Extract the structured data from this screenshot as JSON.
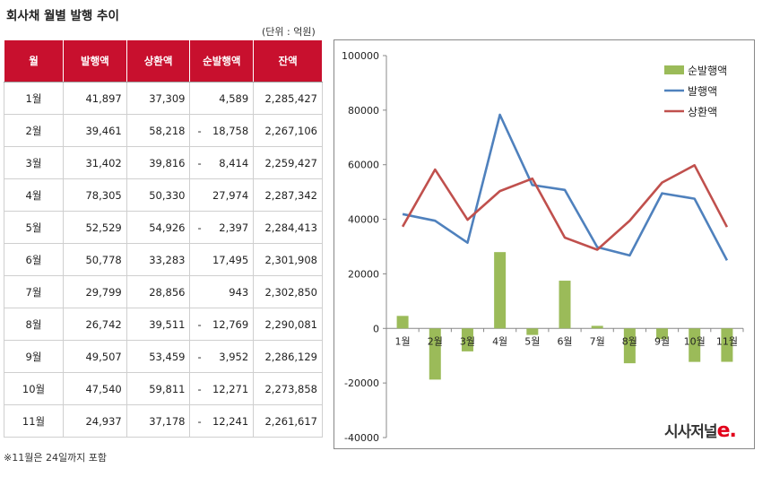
{
  "title": "회사채 월별 발행 추이",
  "unit": "(단위 : 억원)",
  "footnote": "※11월은 24일까지 포함",
  "logo": {
    "main": "시사저널",
    "suffix": "e."
  },
  "colors": {
    "header": "#c8102e",
    "bar": "#9bbb59",
    "issuance": "#4f81bd",
    "redemption": "#c0504d"
  },
  "table": {
    "headers": [
      "월",
      "발행액",
      "상환액",
      "순발행액",
      "잔액"
    ],
    "rows": [
      {
        "month": "1월",
        "issue": "41,897",
        "redeem": "37,309",
        "net": "4,589",
        "neg": false,
        "balance": "2,285,427"
      },
      {
        "month": "2월",
        "issue": "39,461",
        "redeem": "58,218",
        "net": "18,758",
        "neg": true,
        "balance": "2,267,106"
      },
      {
        "month": "3월",
        "issue": "31,402",
        "redeem": "39,816",
        "net": "8,414",
        "neg": true,
        "balance": "2,259,427"
      },
      {
        "month": "4월",
        "issue": "78,305",
        "redeem": "50,330",
        "net": "27,974",
        "neg": false,
        "balance": "2,287,342"
      },
      {
        "month": "5월",
        "issue": "52,529",
        "redeem": "54,926",
        "net": "2,397",
        "neg": true,
        "balance": "2,284,413"
      },
      {
        "month": "6월",
        "issue": "50,778",
        "redeem": "33,283",
        "net": "17,495",
        "neg": false,
        "balance": "2,301,908"
      },
      {
        "month": "7월",
        "issue": "29,799",
        "redeem": "28,856",
        "net": "943",
        "neg": false,
        "balance": "2,302,850"
      },
      {
        "month": "8월",
        "issue": "26,742",
        "redeem": "39,511",
        "net": "12,769",
        "neg": true,
        "balance": "2,290,081"
      },
      {
        "month": "9월",
        "issue": "49,507",
        "redeem": "53,459",
        "net": "3,952",
        "neg": true,
        "balance": "2,286,129"
      },
      {
        "month": "10월",
        "issue": "47,540",
        "redeem": "59,811",
        "net": "12,271",
        "neg": true,
        "balance": "2,273,858"
      },
      {
        "month": "11월",
        "issue": "24,937",
        "redeem": "37,178",
        "net": "12,241",
        "neg": true,
        "balance": "2,261,617"
      }
    ]
  },
  "chart_data": {
    "type": "bar",
    "categories": [
      "1월",
      "2월",
      "3월",
      "4월",
      "5월",
      "6월",
      "7월",
      "8월",
      "9월",
      "10월",
      "11월"
    ],
    "series": [
      {
        "name": "순발행액",
        "type": "bar",
        "values": [
          4589,
          -18758,
          -8414,
          27974,
          -2397,
          17495,
          943,
          -12769,
          -3952,
          -12271,
          -12241
        ]
      },
      {
        "name": "발행액",
        "type": "line",
        "values": [
          41897,
          39461,
          31402,
          78305,
          52529,
          50778,
          29799,
          26742,
          49507,
          47540,
          24937
        ]
      },
      {
        "name": "상환액",
        "type": "line",
        "values": [
          37309,
          58218,
          39816,
          50330,
          54926,
          33283,
          28856,
          39511,
          53459,
          59811,
          37178
        ]
      }
    ],
    "ylim": [
      -40000,
      100000
    ],
    "yticks": [
      -40000,
      -20000,
      0,
      20000,
      40000,
      60000,
      80000,
      100000
    ],
    "grid": false,
    "legend": "top-right"
  }
}
